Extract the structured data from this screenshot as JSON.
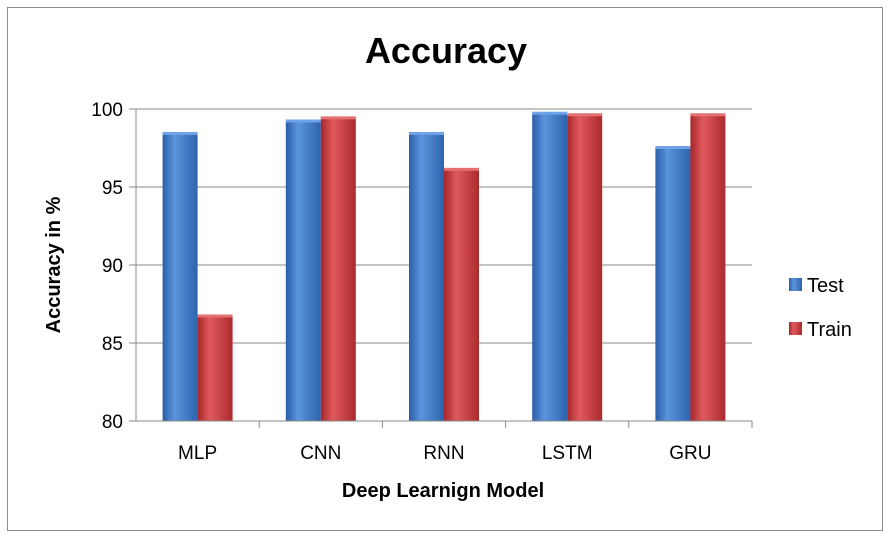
{
  "chart_data": {
    "type": "bar",
    "title": "Accuracy",
    "xlabel": "Deep Learnign Model",
    "ylabel": "Accuracy in %",
    "categories": [
      "MLP",
      "CNN",
      "RNN",
      "LSTM",
      "GRU"
    ],
    "series": [
      {
        "name": "Test",
        "values": [
          98.4,
          99.2,
          98.4,
          99.7,
          97.5
        ],
        "color": "#3a78c9"
      },
      {
        "name": "Train",
        "values": [
          86.7,
          99.4,
          96.1,
          99.6,
          99.6
        ],
        "color": "#c8373b"
      }
    ],
    "ylim": [
      80,
      100
    ],
    "yticks": [
      "80",
      "85",
      "90",
      "95",
      "100"
    ],
    "grid": true,
    "legend_position": "right"
  }
}
